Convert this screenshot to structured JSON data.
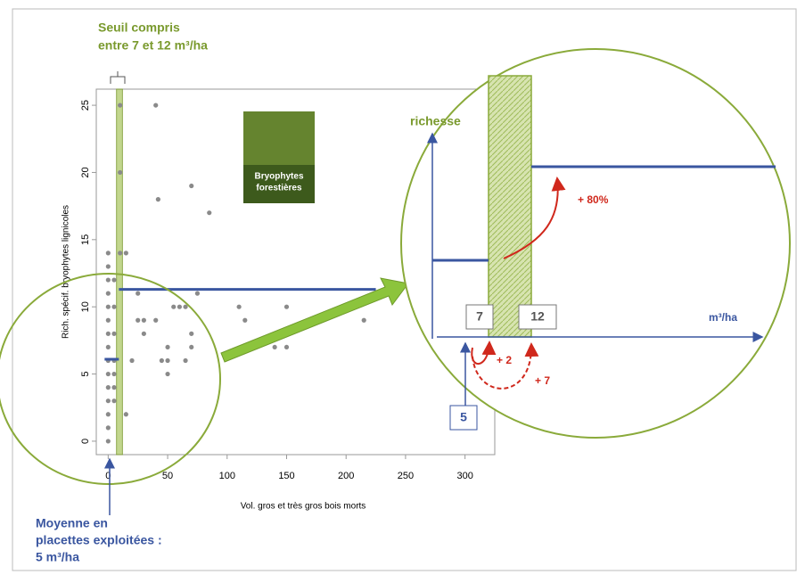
{
  "chart_data": {
    "type": "scatter",
    "x_label": "Vol. gros et très gros bois morts",
    "y_label": "Rich. spécif. bryophytes lignicoles",
    "x": [
      0,
      0,
      0,
      0,
      0,
      0,
      0,
      0,
      0,
      0,
      0,
      0,
      0,
      0,
      0,
      5,
      5,
      5,
      5,
      5,
      5,
      5,
      10,
      10,
      10,
      15,
      15,
      20,
      25,
      25,
      30,
      30,
      40,
      40,
      42,
      45,
      50,
      50,
      50,
      55,
      60,
      65,
      65,
      70,
      70,
      70,
      75,
      85,
      110,
      115,
      140,
      150,
      150,
      215
    ],
    "y": [
      0,
      1,
      2,
      3,
      4,
      5,
      6,
      7,
      8,
      9,
      10,
      11,
      12,
      13,
      14,
      3,
      4,
      5,
      6,
      8,
      10,
      12,
      14,
      20,
      25,
      14,
      2,
      6,
      11,
      9,
      8,
      9,
      25,
      9,
      18,
      6,
      6,
      7,
      5,
      10,
      10,
      6,
      10,
      19,
      8,
      7,
      11,
      17,
      10,
      9,
      7,
      10,
      7,
      9
    ],
    "color": "#8a8a8a",
    "xlim": [
      -10,
      325
    ],
    "ylim": [
      -1,
      26.2
    ],
    "xticks": [
      0,
      50,
      100,
      150,
      200,
      250,
      300
    ],
    "yticks": [
      0,
      5,
      10,
      15,
      20,
      25
    ],
    "threshold_band": [
      7,
      12
    ],
    "segments": [
      {
        "x": [
          -3,
          9
        ],
        "y": 6.1
      },
      {
        "x": [
          9,
          225
        ],
        "y": 11.3
      }
    ]
  },
  "annotations": {
    "threshold": [
      "Seuil compris",
      "entre 7 et 12 m³/ha"
    ],
    "mean": [
      "Moyenne en",
      "placettes exploitées :",
      "5 m³/ha"
    ],
    "photo_caption": [
      "Bryophytes",
      "forestières"
    ]
  },
  "inset": {
    "y_label": "richesse",
    "x_label": "m³/ha",
    "low": "7",
    "high": "12",
    "mean": "5",
    "gain_small": "+ 2",
    "gain_large": "+ 7",
    "increase": "+ 80%"
  }
}
